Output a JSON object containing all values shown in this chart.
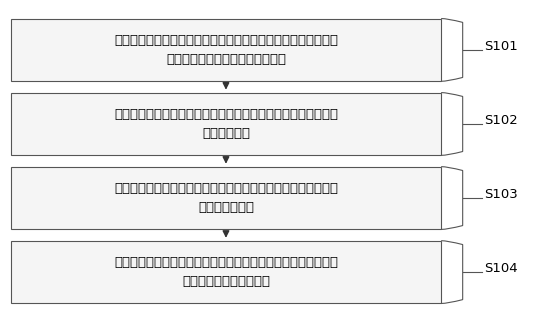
{
  "title": "",
  "background_color": "#ffffff",
  "boxes": [
    {
      "id": "S101",
      "label": "预先存储每一类加工件中的每一个加工件的参数信息、与每一类\n加工件一一对应的可调节抱具信息",
      "step": "S101"
    },
    {
      "id": "S102",
      "label": "在每一次更换模具后，采集该更换后的模具加工出的第一个加工\n件的图像信息",
      "step": "S102"
    },
    {
      "id": "S103",
      "label": "将采集到的第一个加工件的图像信息与存储的每一个加工件的参\n数信息进行匹配",
      "step": "S103"
    },
    {
      "id": "S104",
      "label": "若匹配成功，则依照匹配成功的加工件对应的可调节抱具信息中\n的位姿信息驱动抱具动作",
      "step": "S104"
    }
  ],
  "box_fill": "#f5f5f5",
  "box_edge": "#555555",
  "arrow_color": "#333333",
  "step_label_color": "#000000",
  "font_size": 9.5,
  "step_font_size": 9.5,
  "fig_width": 5.38,
  "fig_height": 3.22,
  "dpi": 100
}
